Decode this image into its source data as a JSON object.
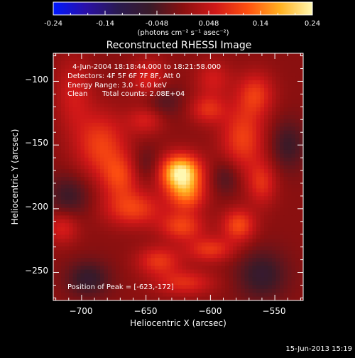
{
  "colorbar": {
    "ticks": [
      "-0.24",
      "-0.14",
      "-0.048",
      "0.048",
      "0.14",
      "0.24"
    ],
    "unit": "(photons cm⁻² s⁻¹ asec⁻²)",
    "stops": [
      "#0018ff",
      "#2a10a8",
      "#2a1a50",
      "#3a1a28",
      "#8a1010",
      "#d01818",
      "#ff5010",
      "#ffb020",
      "#fff8b0"
    ]
  },
  "title": "Reconstructed RHESSI Image",
  "annotations": {
    "time": "4-Jun-2004 18:18:44.000 to 18:21:58.000",
    "detectors": "Detectors: 4F 5F 6F 7F 8F, Att 0",
    "energy": "Energy Range: 3.0 - 6.0 keV",
    "algorithm": "Clean",
    "counts": "Total counts: 2.08E+04",
    "peak": "Position of Peak = [-623,-172]"
  },
  "footer": {
    "timestamp": "15-Jun-2013 15:19"
  },
  "chart_data": {
    "type": "heatmap",
    "title": "Reconstructed RHESSI Image",
    "xlabel": "Heliocentric X (arcsec)",
    "ylabel": "Heliocentric Y (arcsec)",
    "xlim": [
      -722,
      -528
    ],
    "ylim": [
      -272,
      -78
    ],
    "xticks": [
      -700,
      -650,
      -600,
      -550
    ],
    "yticks": [
      -100,
      -150,
      -200,
      -250
    ],
    "xtick_labels": [
      "−700",
      "−650",
      "−600",
      "−550"
    ],
    "ytick_labels": [
      "−100",
      "−150",
      "−200",
      "−250"
    ],
    "colorbar_range": [
      -0.24,
      0.24
    ],
    "peak": {
      "x": -623,
      "y": -172
    },
    "features": [
      {
        "x": -623,
        "y": -172,
        "sx": 11,
        "sy": 10,
        "v": 0.24
      },
      {
        "x": -618,
        "y": -190,
        "sx": 10,
        "sy": 9,
        "v": 0.11
      },
      {
        "x": -660,
        "y": -200,
        "sx": 16,
        "sy": 10,
        "v": 0.1
      },
      {
        "x": -622,
        "y": -214,
        "sx": 12,
        "sy": 8,
        "v": 0.1
      },
      {
        "x": -578,
        "y": -213,
        "sx": 9,
        "sy": 9,
        "v": 0.11
      },
      {
        "x": -600,
        "y": -232,
        "sx": 13,
        "sy": 7,
        "v": 0.09
      },
      {
        "x": -640,
        "y": -241,
        "sx": 12,
        "sy": 8,
        "v": 0.09
      },
      {
        "x": -620,
        "y": -258,
        "sx": 16,
        "sy": 7,
        "v": 0.08
      },
      {
        "x": -685,
        "y": -150,
        "sx": 14,
        "sy": 18,
        "v": 0.1
      },
      {
        "x": -670,
        "y": -175,
        "sx": 10,
        "sy": 12,
        "v": 0.09
      },
      {
        "x": -650,
        "y": -130,
        "sx": 10,
        "sy": 8,
        "v": 0.07
      },
      {
        "x": -648,
        "y": -100,
        "sx": 10,
        "sy": 12,
        "v": 0.08
      },
      {
        "x": -602,
        "y": -122,
        "sx": 10,
        "sy": 8,
        "v": 0.08
      },
      {
        "x": -598,
        "y": -98,
        "sx": 10,
        "sy": 10,
        "v": 0.06
      },
      {
        "x": -575,
        "y": -145,
        "sx": 12,
        "sy": 18,
        "v": 0.1
      },
      {
        "x": -565,
        "y": -110,
        "sx": 10,
        "sy": 12,
        "v": 0.09
      },
      {
        "x": -560,
        "y": -180,
        "sx": 8,
        "sy": 12,
        "v": 0.08
      },
      {
        "x": -715,
        "y": -215,
        "sx": 9,
        "sy": 9,
        "v": 0.07
      },
      {
        "x": -706,
        "y": -110,
        "sx": 10,
        "sy": 20,
        "v": 0.06
      },
      {
        "x": -695,
        "y": -255,
        "sx": 12,
        "sy": 10,
        "v": -0.07
      },
      {
        "x": -710,
        "y": -190,
        "sx": 12,
        "sy": 12,
        "v": -0.06
      },
      {
        "x": -640,
        "y": -115,
        "sx": 12,
        "sy": 10,
        "v": -0.06
      },
      {
        "x": -560,
        "y": -252,
        "sx": 14,
        "sy": 14,
        "v": -0.07
      },
      {
        "x": -540,
        "y": -150,
        "sx": 10,
        "sy": 14,
        "v": -0.06
      },
      {
        "x": -588,
        "y": -175,
        "sx": 8,
        "sy": 10,
        "v": -0.05
      },
      {
        "x": -650,
        "y": -165,
        "sx": 8,
        "sy": 10,
        "v": -0.04
      }
    ]
  }
}
